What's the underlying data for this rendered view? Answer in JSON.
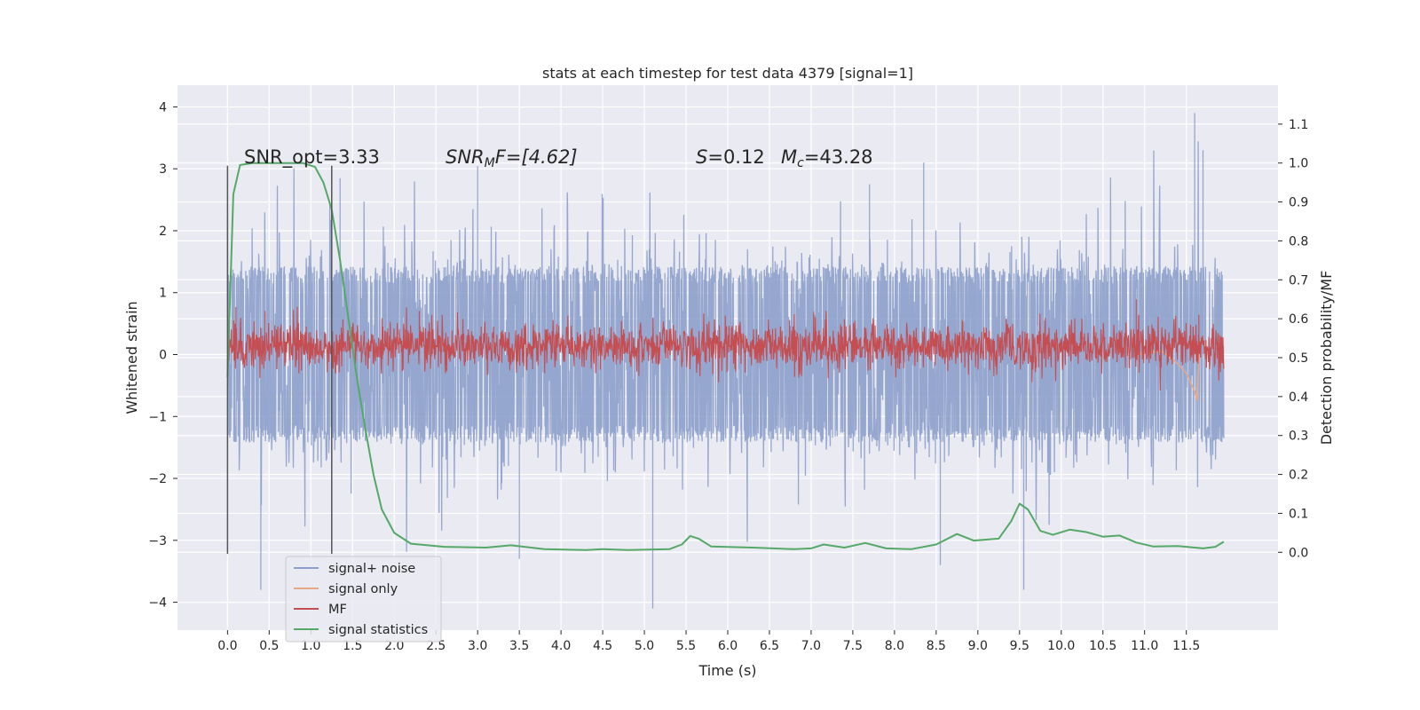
{
  "chart_data": {
    "type": "line",
    "title": "stats at each timestep for test data 4379 [signal=1]",
    "xlabel": "Time (s)",
    "ylabel": "Whitened strain",
    "ylabel_right": "Detection probability/MF",
    "xlim": [
      -0.6,
      12.6
    ],
    "ylim": [
      -4.45,
      4.35
    ],
    "ylim_right": [
      -0.2,
      1.2
    ],
    "x_ticks": [
      "0.0",
      "0.5",
      "1.0",
      "1.5",
      "2.0",
      "2.5",
      "3.0",
      "3.5",
      "4.0",
      "4.5",
      "5.0",
      "5.5",
      "6.0",
      "6.5",
      "7.0",
      "7.5",
      "8.0",
      "8.5",
      "9.0",
      "9.5",
      "10.0",
      "10.5",
      "11.0",
      "11.5"
    ],
    "y_ticks": [
      "4",
      "3",
      "2",
      "1",
      "0",
      "−1",
      "−2",
      "−3",
      "−4"
    ],
    "y_ticks_right": [
      "1.1",
      "1.0",
      "0.9",
      "0.8",
      "0.7",
      "0.6",
      "0.5",
      "0.4",
      "0.3",
      "0.2",
      "0.1",
      "0.0"
    ],
    "grid": true,
    "legend_placement": "lower-left",
    "annotations": {
      "snr_opt": "SNR_opt=3.33",
      "snr_mf_prefix": "SNR",
      "snr_mf_sub": "M",
      "snr_mf_suffix": "F=[4.62]",
      "s_label": "S",
      "s_value": "=0.12",
      "mc_label": "M",
      "mc_sub": "c",
      "mc_value": "=43.28"
    },
    "vertical_lines": [
      0.0,
      1.25
    ],
    "series": [
      {
        "name": "signal+ noise",
        "color": "#8da0cb",
        "axis": "left",
        "duration": 11.95,
        "envelope": 1.35,
        "sigma": 0.85,
        "spikes": [
          {
            "x": 0.4,
            "y": -3.8
          },
          {
            "x": 1.35,
            "y": 2.85
          },
          {
            "x": 3.0,
            "y": 3.05
          },
          {
            "x": 3.5,
            "y": -3.3
          },
          {
            "x": 5.1,
            "y": -4.1
          },
          {
            "x": 8.35,
            "y": 3.1
          },
          {
            "x": 8.55,
            "y": -3.4
          },
          {
            "x": 9.55,
            "y": -3.8
          },
          {
            "x": 11.6,
            "y": 3.9
          },
          {
            "x": 11.7,
            "y": 3.3
          },
          {
            "x": 7.7,
            "y": 2.75
          }
        ]
      },
      {
        "name": "signal only",
        "color": "#e5a98a",
        "axis": "left",
        "chirp": [
          [
            10.9,
            0.0
          ],
          [
            11.2,
            0.06
          ],
          [
            11.4,
            -0.15
          ],
          [
            11.5,
            -0.3
          ],
          [
            11.6,
            -0.6
          ],
          [
            11.63,
            -0.75
          ],
          [
            11.66,
            0.1
          ],
          [
            11.7,
            0.25
          ],
          [
            11.75,
            0.0
          ]
        ]
      },
      {
        "name": "MF",
        "color": "#c44e52",
        "axis": "right",
        "base": 0.53,
        "spread": 0.03,
        "spikes": [
          {
            "x": 0.1,
            "y": 0.63
          },
          {
            "x": 0.45,
            "y": 0.62
          },
          {
            "x": 2.3,
            "y": 0.62
          },
          {
            "x": 10.9,
            "y": 0.65
          },
          {
            "x": 11.65,
            "y": 0.61
          }
        ]
      },
      {
        "name": "signal statistics",
        "color": "#55a868",
        "axis": "right",
        "points": [
          [
            0.0,
            0.45
          ],
          [
            0.07,
            0.92
          ],
          [
            0.15,
            0.995
          ],
          [
            0.3,
            1.0
          ],
          [
            0.9,
            1.0
          ],
          [
            1.05,
            0.99
          ],
          [
            1.15,
            0.95
          ],
          [
            1.25,
            0.88
          ],
          [
            1.35,
            0.75
          ],
          [
            1.45,
            0.6
          ],
          [
            1.55,
            0.45
          ],
          [
            1.65,
            0.32
          ],
          [
            1.75,
            0.2
          ],
          [
            1.85,
            0.11
          ],
          [
            2.0,
            0.05
          ],
          [
            2.2,
            0.022
          ],
          [
            2.6,
            0.014
          ],
          [
            3.1,
            0.012
          ],
          [
            3.4,
            0.018
          ],
          [
            3.8,
            0.008
          ],
          [
            4.3,
            0.006
          ],
          [
            4.5,
            0.008
          ],
          [
            4.8,
            0.006
          ],
          [
            5.3,
            0.008
          ],
          [
            5.45,
            0.02
          ],
          [
            5.55,
            0.042
          ],
          [
            5.65,
            0.035
          ],
          [
            5.8,
            0.015
          ],
          [
            6.3,
            0.012
          ],
          [
            6.8,
            0.008
          ],
          [
            7.0,
            0.01
          ],
          [
            7.15,
            0.02
          ],
          [
            7.4,
            0.012
          ],
          [
            7.65,
            0.024
          ],
          [
            7.9,
            0.01
          ],
          [
            8.2,
            0.008
          ],
          [
            8.5,
            0.02
          ],
          [
            8.75,
            0.047
          ],
          [
            8.95,
            0.03
          ],
          [
            9.25,
            0.035
          ],
          [
            9.4,
            0.08
          ],
          [
            9.5,
            0.125
          ],
          [
            9.6,
            0.11
          ],
          [
            9.75,
            0.055
          ],
          [
            9.9,
            0.045
          ],
          [
            10.1,
            0.058
          ],
          [
            10.3,
            0.052
          ],
          [
            10.5,
            0.04
          ],
          [
            10.7,
            0.043
          ],
          [
            10.9,
            0.025
          ],
          [
            11.1,
            0.015
          ],
          [
            11.4,
            0.016
          ],
          [
            11.7,
            0.01
          ],
          [
            11.85,
            0.014
          ],
          [
            11.95,
            0.027
          ]
        ]
      }
    ]
  }
}
